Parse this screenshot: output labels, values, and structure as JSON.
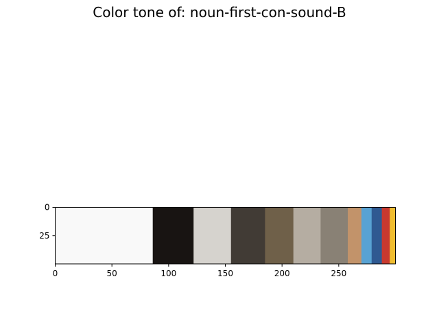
{
  "chart_data": {
    "type": "heatmap",
    "title": "Color tone of: noun-first-con-sound-B",
    "xlim": [
      0,
      300
    ],
    "ylim": [
      0,
      50
    ],
    "y_inverted": true,
    "x_ticks": [
      0,
      50,
      100,
      150,
      200,
      250
    ],
    "y_ticks": [
      0,
      25
    ],
    "grid": false,
    "segments": [
      {
        "start": 0,
        "end": 86,
        "color": "#f9f9f9"
      },
      {
        "start": 86,
        "end": 122,
        "color": "#181412"
      },
      {
        "start": 122,
        "end": 155,
        "color": "#d6d3ce"
      },
      {
        "start": 155,
        "end": 185,
        "color": "#413b35"
      },
      {
        "start": 185,
        "end": 210,
        "color": "#6f6049"
      },
      {
        "start": 210,
        "end": 234,
        "color": "#b5ada2"
      },
      {
        "start": 234,
        "end": 258,
        "color": "#898175"
      },
      {
        "start": 258,
        "end": 270,
        "color": "#c2936a"
      },
      {
        "start": 270,
        "end": 279,
        "color": "#58a2d3"
      },
      {
        "start": 279,
        "end": 288,
        "color": "#2f5991"
      },
      {
        "start": 288,
        "end": 295,
        "color": "#c8392f"
      },
      {
        "start": 295,
        "end": 300,
        "color": "#efbd31"
      }
    ]
  }
}
